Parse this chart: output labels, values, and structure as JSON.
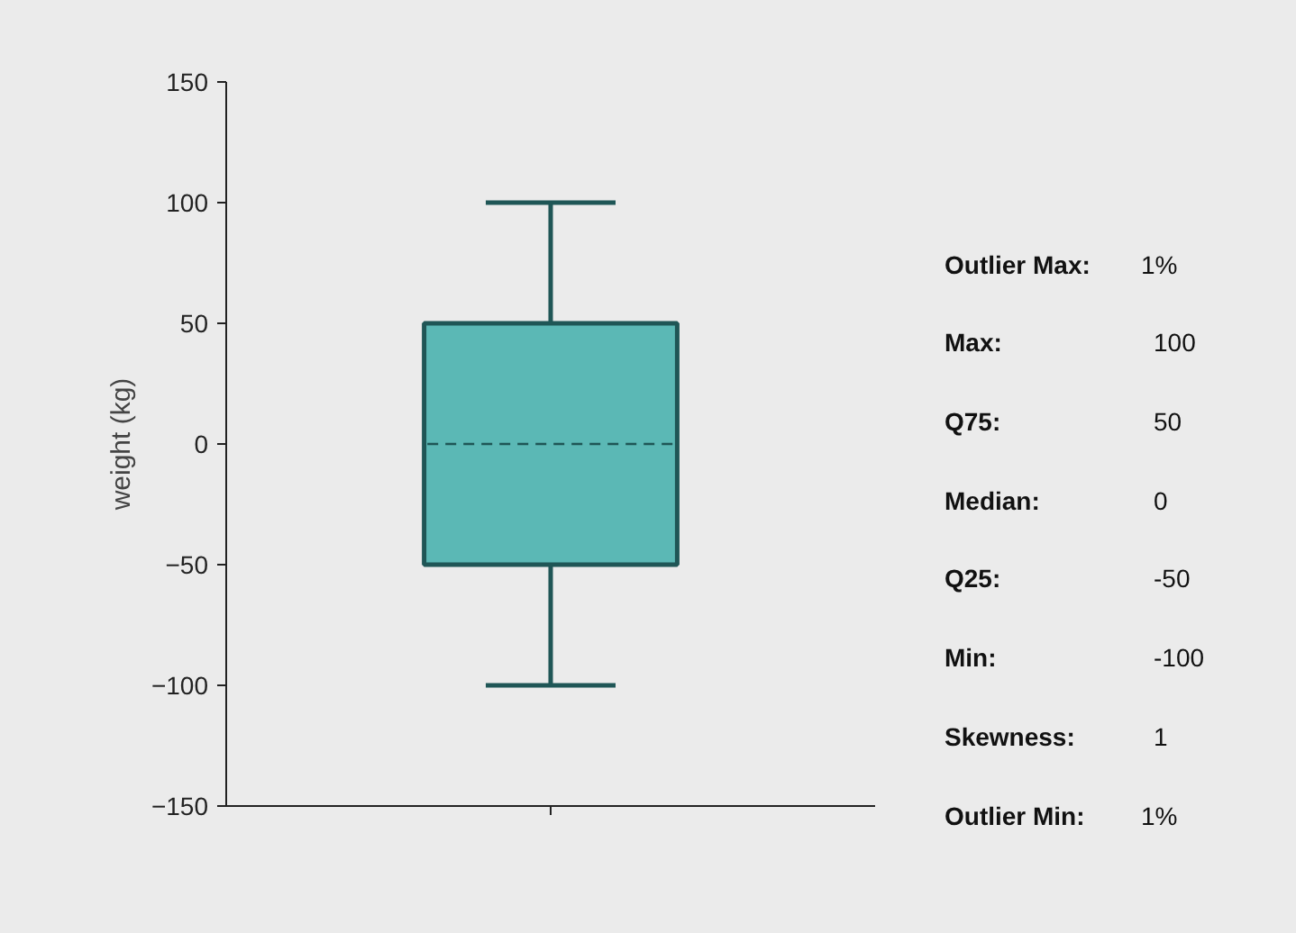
{
  "chart_data": {
    "type": "box",
    "ylabel": "weight (kg)",
    "categories": [
      null
    ],
    "boxes": [
      {
        "low": -100,
        "q1": -50,
        "median": 0,
        "q3": 50,
        "high": 100
      }
    ],
    "color": "#5bb8b5",
    "ylim": [
      -150,
      150
    ],
    "yticks": [
      -150,
      -100,
      -50,
      0,
      50,
      100,
      150
    ],
    "grid": false,
    "annotations": [
      "Outlier Max: 1%",
      "Max: 100",
      "Q75: 50",
      "Median: 0",
      "Q25: -50",
      "Min: -100",
      "Skewness: 1",
      "Outlier Min: 1%"
    ]
  }
}
